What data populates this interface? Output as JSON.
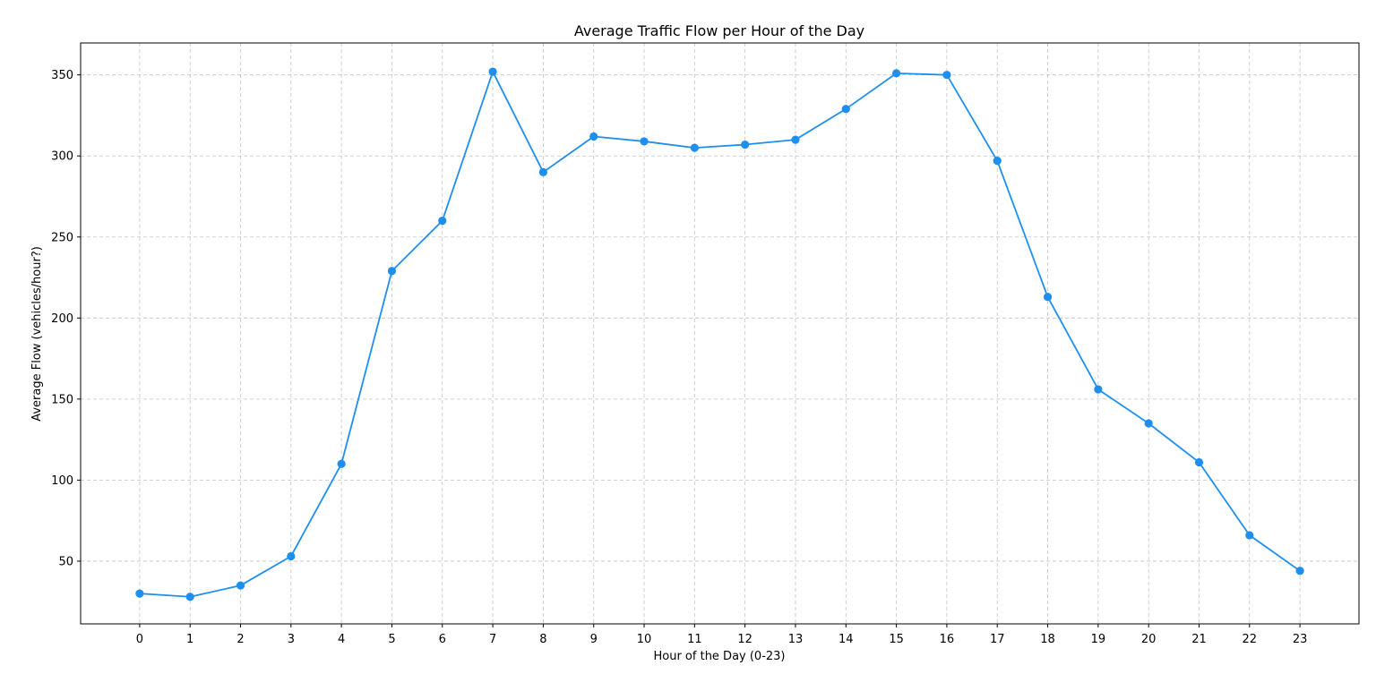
{
  "chart_data": {
    "type": "line",
    "title": "Average Traffic Flow per Hour of the Day",
    "xlabel": "Hour of the Day (0-23)",
    "ylabel": "Average Flow (vehicles/hour?)",
    "x": [
      0,
      1,
      2,
      3,
      4,
      5,
      6,
      7,
      8,
      9,
      10,
      11,
      12,
      13,
      14,
      15,
      16,
      17,
      18,
      19,
      20,
      21,
      22,
      23
    ],
    "series": [
      {
        "values": [
          30,
          28,
          35,
          53,
          110,
          229,
          260,
          352,
          290,
          312,
          309,
          305,
          307,
          310,
          329,
          351,
          350,
          297,
          213,
          156,
          135,
          111,
          66,
          44
        ],
        "color": "#1f8fef",
        "marker": "circle"
      }
    ],
    "xlim": [
      -1.17,
      24.17
    ],
    "ylim": [
      11.3,
      369.7
    ],
    "yticks": [
      50,
      100,
      150,
      200,
      250,
      300,
      350
    ],
    "grid": true,
    "grid_style": "dashed"
  }
}
